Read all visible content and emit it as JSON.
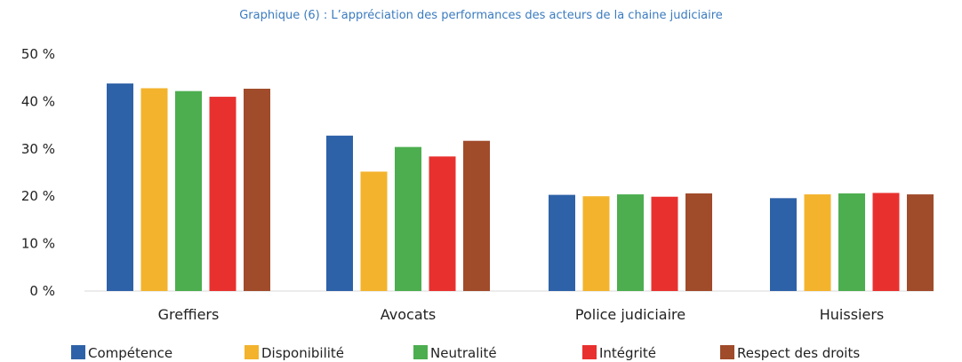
{
  "chart_data": {
    "type": "bar",
    "title": "Graphique (6) : L’appréciation des performances des acteurs de la chaine judiciaire",
    "xlabel": "",
    "ylabel": "",
    "ylim": [
      0,
      50
    ],
    "yticks": [
      "0 %",
      "10 %",
      "20 %",
      "30 %",
      "40 %",
      "50 %"
    ],
    "ytick_values": [
      0,
      10,
      20,
      30,
      40,
      50
    ],
    "grid": false,
    "legend_position": "bottom",
    "categories": [
      "Greffiers",
      "Avocats",
      "Police judiciaire",
      "Huissiers"
    ],
    "series": [
      {
        "name": "Compétence",
        "color": "#2e62a8",
        "values": [
          43.8,
          32.8,
          20.3,
          19.6
        ]
      },
      {
        "name": "Disponibilité",
        "color": "#f3b32d",
        "values": [
          42.8,
          25.2,
          20.0,
          20.4
        ]
      },
      {
        "name": "Neutralité",
        "color": "#4cae4f",
        "values": [
          42.2,
          30.4,
          20.4,
          20.6
        ]
      },
      {
        "name": "Intégrité",
        "color": "#e8312f",
        "values": [
          41.0,
          28.4,
          19.9,
          20.7
        ]
      },
      {
        "name": "Respect des droits",
        "color": "#a04b2a",
        "values": [
          42.7,
          31.7,
          20.6,
          20.4
        ]
      }
    ]
  }
}
